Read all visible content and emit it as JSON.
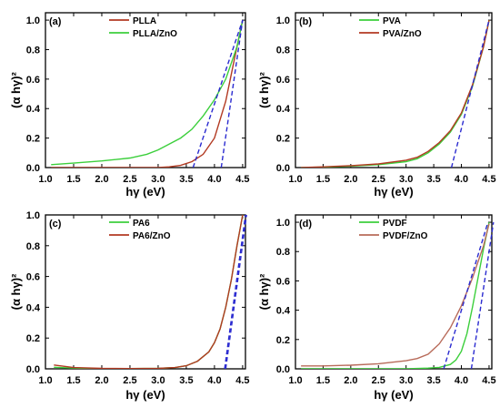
{
  "colors": {
    "dark_red": "#b23a22",
    "green": "#3ccf3c",
    "brown_light": "#b86b5a",
    "dash": "#2a2ad0",
    "axis": "#000000"
  },
  "chart_data": [
    {
      "type": "line",
      "panel_label": "(a)",
      "xlabel": "hγ  (eV)",
      "ylabel": "(α hγ)²",
      "xlim": [
        1.0,
        4.55
      ],
      "ylim": [
        0.0,
        1.05
      ],
      "xticks": [
        "1.0",
        "1.5",
        "2.0",
        "2.5",
        "3.0",
        "3.5",
        "4.0",
        "4.5"
      ],
      "yticks": [
        "0.0",
        "0.2",
        "0.4",
        "0.6",
        "0.8",
        "1.0"
      ],
      "legend_position": "top-left",
      "series": [
        {
          "name": "PLLA",
          "color": "#b23a22",
          "x": [
            1.1,
            1.5,
            2.0,
            2.5,
            3.0,
            3.2,
            3.4,
            3.6,
            3.8,
            4.0,
            4.2,
            4.4,
            4.5
          ],
          "y": [
            0.0,
            0.0,
            0.0,
            0.0,
            0.0,
            0.005,
            0.015,
            0.04,
            0.09,
            0.2,
            0.45,
            0.82,
            1.0
          ]
        },
        {
          "name": "PLLA/ZnO",
          "color": "#3ccf3c",
          "x": [
            1.1,
            1.5,
            2.0,
            2.5,
            2.8,
            3.0,
            3.2,
            3.4,
            3.5,
            3.6,
            3.8,
            4.0,
            4.2,
            4.4,
            4.5
          ],
          "y": [
            0.02,
            0.03,
            0.045,
            0.065,
            0.09,
            0.12,
            0.16,
            0.2,
            0.23,
            0.26,
            0.35,
            0.46,
            0.6,
            0.82,
            1.0
          ]
        }
      ],
      "fits": [
        {
          "x": [
            4.12,
            4.5
          ],
          "y": [
            0.0,
            1.0
          ]
        },
        {
          "x": [
            3.62,
            4.5
          ],
          "y": [
            0.0,
            1.0
          ]
        }
      ]
    },
    {
      "type": "line",
      "panel_label": "(b)",
      "xlabel": "hγ  (eV)",
      "ylabel": "(α hγ)²",
      "xlim": [
        1.0,
        4.55
      ],
      "ylim": [
        0.0,
        1.05
      ],
      "xticks": [
        "1.0",
        "1.5",
        "2.0",
        "2.5",
        "3.0",
        "3.5",
        "4.0",
        "4.5"
      ],
      "yticks": [
        "0.0",
        "0.2",
        "0.4",
        "0.6",
        "0.8",
        "1.0"
      ],
      "legend_position": "top-left",
      "series": [
        {
          "name": "PVA",
          "color": "#3ccf3c",
          "x": [
            1.1,
            1.5,
            2.0,
            2.5,
            3.0,
            3.2,
            3.4,
            3.6,
            3.8,
            4.0,
            4.2,
            4.4,
            4.5
          ],
          "y": [
            0.0,
            0.003,
            0.01,
            0.02,
            0.04,
            0.06,
            0.1,
            0.16,
            0.24,
            0.36,
            0.55,
            0.82,
            1.0
          ]
        },
        {
          "name": "PVA/ZnO",
          "color": "#b23a22",
          "x": [
            1.1,
            1.5,
            2.0,
            2.5,
            3.0,
            3.2,
            3.4,
            3.6,
            3.8,
            4.0,
            4.2,
            4.4,
            4.5
          ],
          "y": [
            0.0,
            0.005,
            0.013,
            0.025,
            0.05,
            0.07,
            0.11,
            0.17,
            0.25,
            0.37,
            0.56,
            0.82,
            1.0
          ]
        }
      ],
      "fits": [
        {
          "x": [
            3.82,
            4.5
          ],
          "y": [
            0.0,
            1.0
          ]
        }
      ]
    },
    {
      "type": "line",
      "panel_label": "(c)",
      "xlabel": "hγ  (eV)",
      "ylabel": "(α hγ)²",
      "xlim": [
        1.0,
        4.55
      ],
      "ylim": [
        0.0,
        1.0
      ],
      "xticks": [
        "1.0",
        "1.5",
        "2.0",
        "2.5",
        "3.0",
        "3.5",
        "4.0",
        "4.5"
      ],
      "yticks": [
        "0.0",
        "0.2",
        "0.4",
        "0.6",
        "0.8",
        "1.0"
      ],
      "legend_position": "top-left",
      "series": [
        {
          "name": "PA6",
          "color": "#3ccf3c",
          "x": [
            1.15,
            1.5,
            2.0,
            2.5,
            3.0,
            3.3,
            3.5,
            3.7,
            3.9,
            4.0,
            4.1,
            4.2,
            4.3,
            4.4,
            4.5
          ],
          "y": [
            0.01,
            0.005,
            0.002,
            0.002,
            0.003,
            0.008,
            0.02,
            0.05,
            0.11,
            0.17,
            0.26,
            0.4,
            0.58,
            0.8,
            1.0
          ]
        },
        {
          "name": "PA6/ZnO",
          "color": "#b23a22",
          "x": [
            1.15,
            1.5,
            2.0,
            2.5,
            3.0,
            3.3,
            3.5,
            3.7,
            3.9,
            4.0,
            4.1,
            4.2,
            4.3,
            4.4,
            4.5
          ],
          "y": [
            0.025,
            0.008,
            0.003,
            0.002,
            0.003,
            0.008,
            0.02,
            0.05,
            0.11,
            0.17,
            0.26,
            0.4,
            0.58,
            0.8,
            1.0
          ]
        }
      ],
      "fits": [
        {
          "x": [
            4.18,
            4.55
          ],
          "y": [
            0.0,
            1.0
          ]
        },
        {
          "x": [
            4.2,
            4.57
          ],
          "y": [
            0.0,
            1.0
          ]
        }
      ]
    },
    {
      "type": "line",
      "panel_label": "(d)",
      "xlabel": "hγ  (eV)",
      "ylabel": "(α hγ)²",
      "xlim": [
        1.0,
        4.55
      ],
      "ylim": [
        0.0,
        1.05
      ],
      "xticks": [
        "1.0",
        "1.5",
        "2.0",
        "2.5",
        "3.0",
        "3.5",
        "4.0",
        "4.5"
      ],
      "yticks": [
        "0.0",
        "0.2",
        "0.4",
        "0.6",
        "0.8",
        "1.0"
      ],
      "legend_position": "top-left",
      "series": [
        {
          "name": "PVDF",
          "color": "#3ccf3c",
          "x": [
            1.1,
            1.5,
            2.0,
            2.5,
            3.0,
            3.4,
            3.6,
            3.8,
            3.9,
            4.0,
            4.1,
            4.2,
            4.3,
            4.4,
            4.5
          ],
          "y": [
            0.0,
            0.0,
            0.0,
            0.0,
            0.0,
            0.005,
            0.01,
            0.03,
            0.06,
            0.12,
            0.24,
            0.42,
            0.62,
            0.82,
            1.0
          ]
        },
        {
          "name": "PVDF/ZnO",
          "color": "#b86b5a",
          "x": [
            1.1,
            1.5,
            2.0,
            2.5,
            3.0,
            3.2,
            3.4,
            3.6,
            3.8,
            4.0,
            4.2,
            4.4,
            4.5
          ],
          "y": [
            0.02,
            0.02,
            0.025,
            0.035,
            0.055,
            0.07,
            0.1,
            0.17,
            0.28,
            0.43,
            0.62,
            0.84,
            0.99
          ]
        }
      ],
      "fits": [
        {
          "x": [
            4.18,
            4.58
          ],
          "y": [
            0.0,
            1.0
          ]
        },
        {
          "x": [
            3.68,
            4.48
          ],
          "y": [
            0.0,
            1.0
          ]
        }
      ]
    }
  ]
}
